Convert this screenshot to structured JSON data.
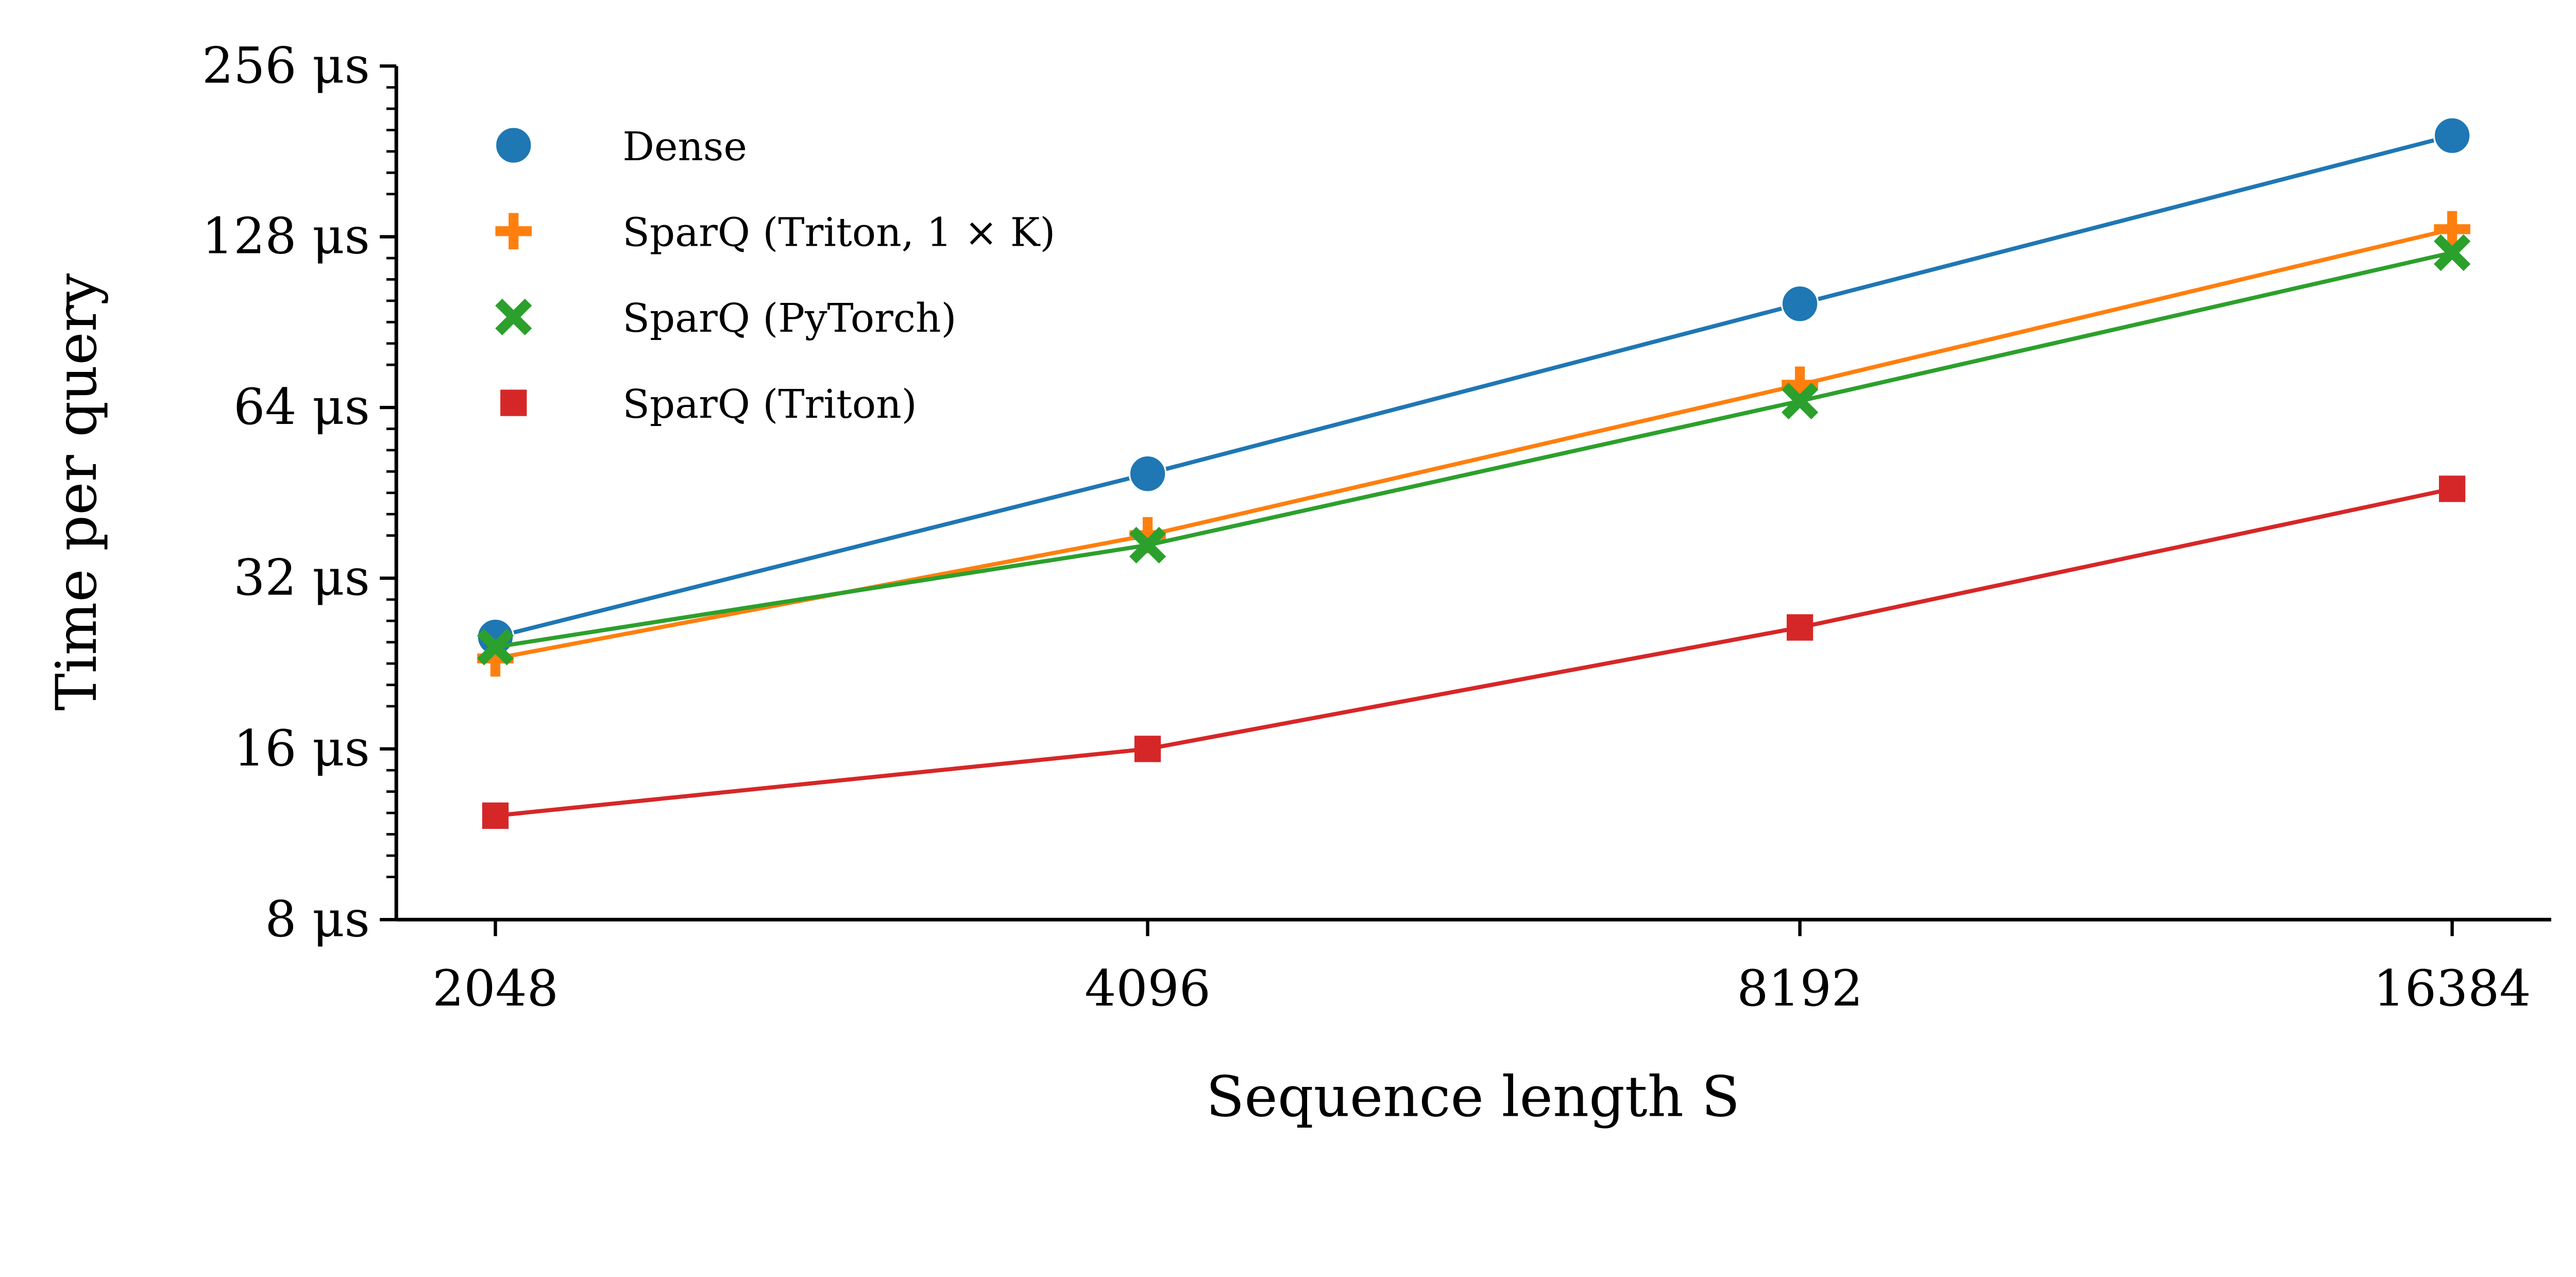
{
  "chart_data": {
    "type": "line",
    "title": "",
    "xlabel": "Sequence length S",
    "ylabel": "Time per query",
    "x_scale": "log2",
    "y_scale": "log2",
    "x": [
      2048,
      4096,
      8192,
      16384
    ],
    "x_tick_labels": [
      "2048",
      "4096",
      "8192",
      "16384"
    ],
    "y_ticks": [
      8,
      16,
      32,
      64,
      128,
      256
    ],
    "y_tick_labels": [
      "8 μs",
      "16 μs",
      "32 μs",
      "64 μs",
      "128 μs",
      "256 μs"
    ],
    "ylim": [
      8,
      256
    ],
    "grid": false,
    "legend_position": "top-left",
    "series": [
      {
        "name": "Dense",
        "color": "#1f77b4",
        "marker": "circle",
        "values": [
          25.2,
          48.9,
          97.5,
          193
        ]
      },
      {
        "name": "SparQ (Triton, 1 × K)",
        "color": "#ff7f0e",
        "marker": "plus",
        "values": [
          23.1,
          38.1,
          70.2,
          132
        ]
      },
      {
        "name": "SparQ (PyTorch)",
        "color": "#2ca02c",
        "marker": "x",
        "values": [
          24.2,
          36.6,
          65.7,
          120
        ]
      },
      {
        "name": "SparQ (Triton)",
        "color": "#d62728",
        "marker": "square",
        "values": [
          12.2,
          16.0,
          26.2,
          46
        ]
      }
    ]
  }
}
